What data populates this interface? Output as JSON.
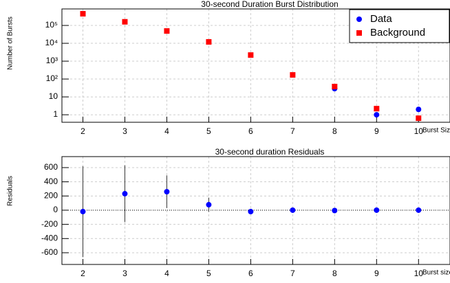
{
  "chart_data": [
    {
      "type": "scatter",
      "title": "30-second Duration Burst Distribution",
      "x_label": "Burst Size",
      "y_label": "Number of Bursts",
      "log_y": true,
      "grid": true,
      "legend": "upper right",
      "xlim": [
        1.5,
        10.75
      ],
      "xticks": [
        2,
        3,
        4,
        5,
        6,
        7,
        8,
        9,
        10
      ],
      "ylim": [
        0.38,
        840000
      ],
      "yticks": [
        1,
        10,
        {
          "value": 100,
          "label": "10²"
        },
        {
          "value": 1000,
          "label": "10³"
        },
        {
          "value": 10000,
          "label": "10⁴"
        },
        {
          "value": 100000,
          "label": "10⁵"
        }
      ],
      "series": [
        {
          "name": "Data",
          "color": "#0000ff",
          "marker": "circle",
          "x": [
            8,
            9,
            10
          ],
          "values": [
            29,
            1,
            2
          ]
        },
        {
          "name": "Background",
          "color": "#ff0000",
          "marker": "square",
          "x": [
            2,
            3,
            4,
            5,
            6,
            7,
            8,
            9,
            10
          ],
          "values": [
            450000,
            160000,
            49000,
            12000,
            2200,
            170,
            38,
            2.2,
            0.64
          ]
        }
      ]
    },
    {
      "type": "errorbar",
      "title": "30-second duration Residuals",
      "x_label": "Burst size",
      "y_label": "Residuals",
      "log_y": false,
      "grid": true,
      "xlim": [
        1.5,
        10.75
      ],
      "xticks": [
        2,
        3,
        4,
        5,
        6,
        7,
        8,
        9,
        10
      ],
      "ylim": [
        -765,
        755
      ],
      "yticks": [
        -600,
        -400,
        -200,
        0,
        200,
        400,
        600
      ],
      "series": [
        {
          "color": "#0000ff",
          "marker": "circle",
          "x": [
            2,
            3,
            4,
            5,
            6,
            7,
            8,
            9,
            10
          ],
          "values": [
            -20,
            232,
            260,
            77,
            -20,
            0,
            -5,
            0,
            0
          ],
          "errors": [
            640,
            400,
            230,
            100,
            10,
            0,
            0,
            0,
            0
          ]
        }
      ]
    }
  ]
}
